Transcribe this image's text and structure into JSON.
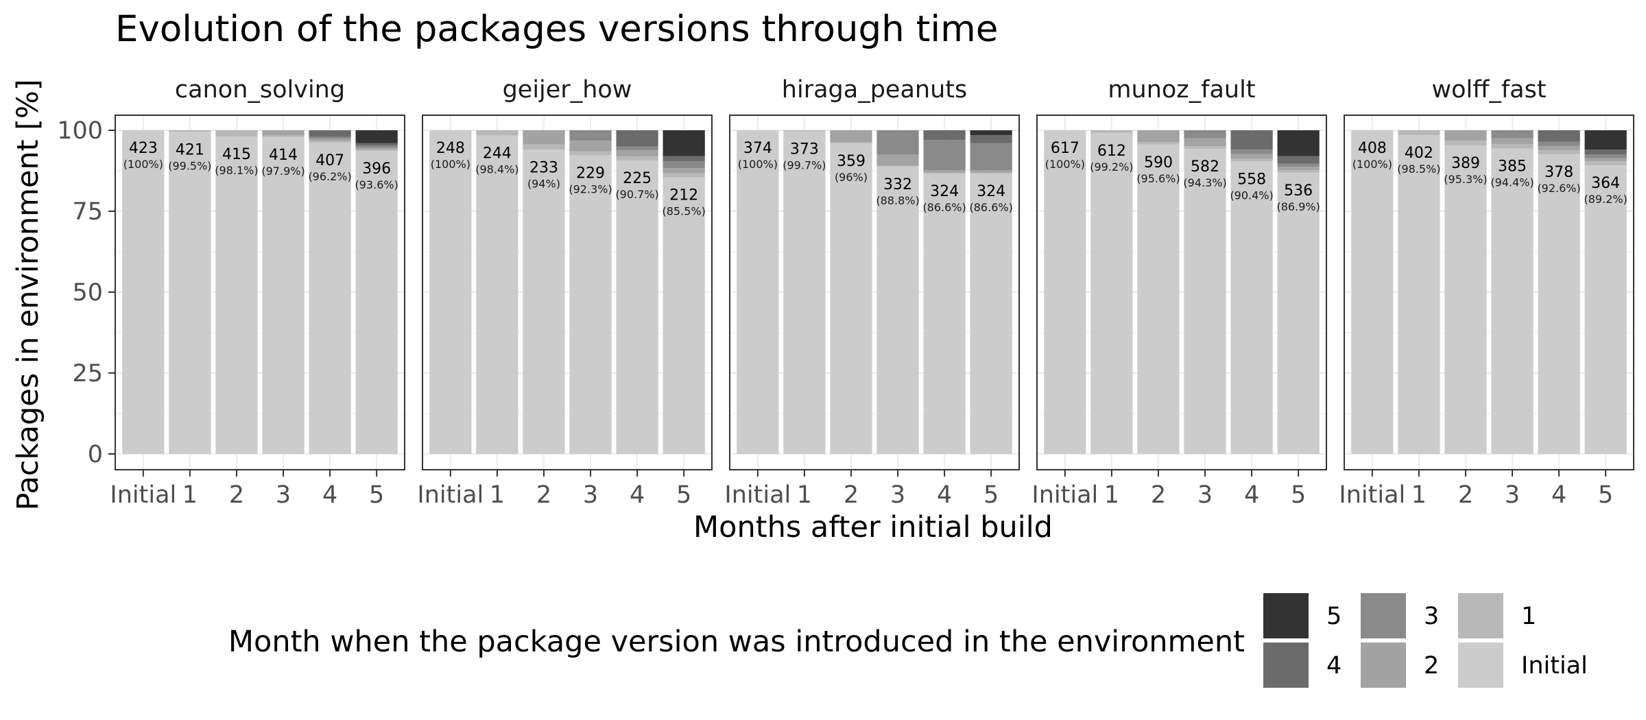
{
  "chart_data": {
    "type": "bar",
    "stacked": true,
    "title": "Evolution of the packages versions through time",
    "xlabel": "Months after initial build",
    "ylabel": "Packages in environment [%]",
    "ylim": [
      0,
      100
    ],
    "yticks": [
      0,
      25,
      50,
      75,
      100
    ],
    "categories": [
      "Initial",
      "1",
      "2",
      "3",
      "4",
      "5"
    ],
    "grid": true,
    "legend": {
      "title": "Month when the package version was introduced in the environment",
      "position": "bottom",
      "entries": [
        {
          "key": "5",
          "label": "5",
          "color": "#333333"
        },
        {
          "key": "4",
          "label": "4",
          "color": "#6b6b6b"
        },
        {
          "key": "3",
          "label": "3",
          "color": "#8a8a8a"
        },
        {
          "key": "2",
          "label": "2",
          "color": "#a3a3a3"
        },
        {
          "key": "1",
          "label": "1",
          "color": "#b8b8b8"
        },
        {
          "key": "Initial",
          "label": "Initial",
          "color": "#cccccc"
        }
      ]
    },
    "panels": [
      {
        "name": "canon_solving",
        "counts": [
          "423",
          "421",
          "415",
          "414",
          "407",
          "396"
        ],
        "percents": [
          "(100%)",
          "(99.5%)",
          "(98.1%)",
          "(97.9%)",
          "(96.2%)",
          "(93.6%)"
        ],
        "stacks": [
          [
            100,
            0,
            0,
            0,
            0,
            0
          ],
          [
            99.5,
            0.5,
            0,
            0,
            0,
            0
          ],
          [
            98.1,
            1.9,
            0,
            0,
            0,
            0
          ],
          [
            97.9,
            0.5,
            1.6,
            0,
            0,
            0
          ],
          [
            96.2,
            0.5,
            0.7,
            0.6,
            2.0,
            0
          ],
          [
            93.6,
            0.5,
            0.5,
            0.6,
            0.8,
            4.0
          ]
        ]
      },
      {
        "name": "geijer_how",
        "counts": [
          "248",
          "244",
          "233",
          "229",
          "225",
          "212"
        ],
        "percents": [
          "(100%)",
          "(98.4%)",
          "(94%)",
          "(92.3%)",
          "(90.7%)",
          "(85.5%)"
        ],
        "stacks": [
          [
            100,
            0,
            0,
            0,
            0,
            0
          ],
          [
            98.4,
            1.6,
            0,
            0,
            0,
            0
          ],
          [
            94.0,
            1.6,
            4.4,
            0,
            0,
            0
          ],
          [
            92.3,
            1.2,
            3.3,
            3.2,
            0,
            0
          ],
          [
            90.7,
            1.2,
            1.9,
            1.2,
            5.0,
            0
          ],
          [
            85.5,
            1.2,
            1.6,
            2.1,
            1.6,
            8.0
          ]
        ]
      },
      {
        "name": "hiraga_peanuts",
        "counts": [
          "374",
          "373",
          "359",
          "332",
          "324",
          "324"
        ],
        "percents": [
          "(100%)",
          "(99.7%)",
          "(96%)",
          "(88.8%)",
          "(86.6%)",
          "(86.6%)"
        ],
        "stacks": [
          [
            100,
            0,
            0,
            0,
            0,
            0
          ],
          [
            99.7,
            0.3,
            0,
            0,
            0,
            0
          ],
          [
            96.0,
            0.3,
            3.7,
            0,
            0,
            0
          ],
          [
            88.8,
            0.3,
            3.4,
            7.5,
            0,
            0
          ],
          [
            86.6,
            0.3,
            0.8,
            9.3,
            3.0,
            0
          ],
          [
            86.6,
            0.3,
            0.8,
            8.3,
            2.5,
            1.5
          ]
        ]
      },
      {
        "name": "munoz_fault",
        "counts": [
          "617",
          "612",
          "590",
          "582",
          "558",
          "536"
        ],
        "percents": [
          "(100%)",
          "(99.2%)",
          "(95.6%)",
          "(94.3%)",
          "(90.4%)",
          "(86.9%)"
        ],
        "stacks": [
          [
            100,
            0,
            0,
            0,
            0,
            0
          ],
          [
            99.2,
            0.8,
            0,
            0,
            0,
            0
          ],
          [
            95.6,
            0.8,
            3.6,
            0,
            0,
            0
          ],
          [
            94.3,
            0.8,
            2.4,
            2.5,
            0,
            0
          ],
          [
            90.4,
            0.8,
            1.5,
            1.3,
            6.0,
            0
          ],
          [
            86.9,
            0.8,
            1.0,
            1.0,
            2.3,
            8.0
          ]
        ]
      },
      {
        "name": "wolff_fast",
        "counts": [
          "408",
          "402",
          "389",
          "385",
          "378",
          "364"
        ],
        "percents": [
          "(100%)",
          "(98.5%)",
          "(95.3%)",
          "(94.4%)",
          "(92.6%)",
          "(89.2%)"
        ],
        "stacks": [
          [
            100,
            0,
            0,
            0,
            0,
            0
          ],
          [
            98.5,
            1.5,
            0,
            0,
            0,
            0
          ],
          [
            95.3,
            1.5,
            3.2,
            0,
            0,
            0
          ],
          [
            94.4,
            1.3,
            1.8,
            2.5,
            0,
            0
          ],
          [
            92.6,
            1.2,
            1.3,
            1.4,
            3.5,
            0
          ],
          [
            89.2,
            1.2,
            1.0,
            1.1,
            1.5,
            6.0
          ]
        ]
      }
    ]
  }
}
